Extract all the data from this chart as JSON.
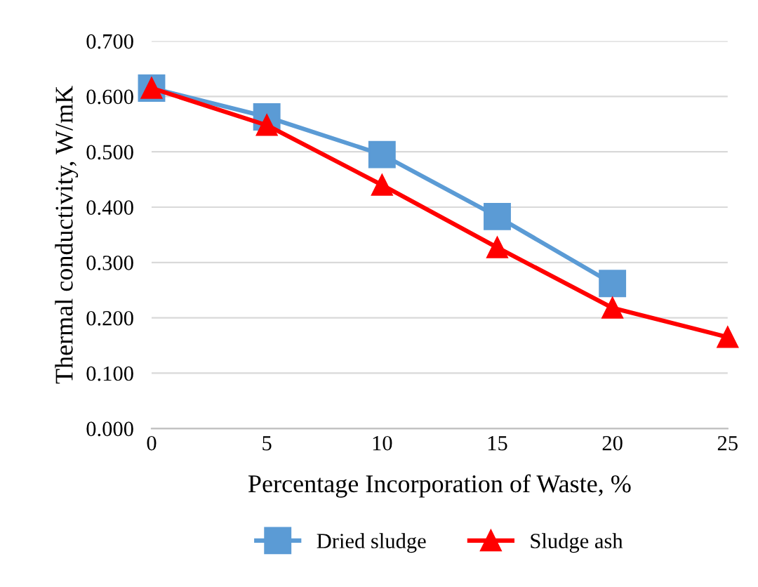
{
  "chart_data": {
    "type": "line",
    "xlabel": "Percentage Incorporation of Waste, %",
    "ylabel": "Thermal conductivity, W/mK",
    "x": [
      0,
      5,
      10,
      15,
      20,
      25
    ],
    "series": [
      {
        "name": "Dried sludge",
        "color": "#5b9bd5",
        "marker": "square",
        "values": [
          0.615,
          0.563,
          0.495,
          0.383,
          0.262,
          null
        ]
      },
      {
        "name": "Sludge ash",
        "color": "#ff0000",
        "marker": "triangle",
        "values": [
          0.615,
          0.548,
          0.44,
          0.327,
          0.218,
          0.165
        ]
      }
    ],
    "xlim": [
      0,
      25
    ],
    "xticks": [
      0,
      5,
      10,
      15,
      20,
      25
    ],
    "ylim": [
      0,
      0.7
    ],
    "yticks": [
      {
        "value": 0,
        "label": "0.000"
      },
      {
        "value": 0.1,
        "label": "0.100"
      },
      {
        "value": 0.2,
        "label": "0.200"
      },
      {
        "value": 0.3,
        "label": "0.300"
      },
      {
        "value": 0.4,
        "label": "0.400"
      },
      {
        "value": 0.5,
        "label": "0.500"
      },
      {
        "value": 0.6,
        "label": "0.600"
      },
      {
        "value": 0.7,
        "label": "0.700"
      }
    ],
    "grid": "y",
    "legend": "bottom",
    "line_style": "solid"
  }
}
